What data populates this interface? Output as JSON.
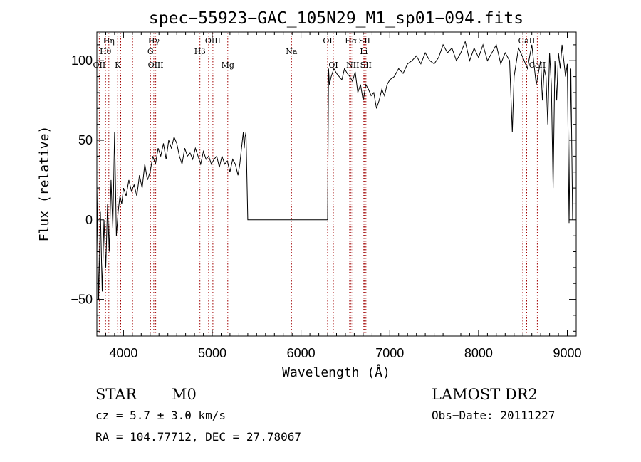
{
  "chart_data": {
    "type": "line",
    "title": "spec−55923−GAC_105N29_M1_sp01−094.fits",
    "xlabel": "Wavelength (Å)",
    "ylabel": "Flux (relative)",
    "xlim": [
      3700,
      9100
    ],
    "ylim": [
      -73,
      118
    ],
    "xticks": [
      4000,
      5000,
      6000,
      7000,
      8000,
      9000
    ],
    "xtick_labels": [
      "4000",
      "5000",
      "6000",
      "7000",
      "8000",
      "9000"
    ],
    "yticks": [
      -50,
      0,
      50,
      100
    ],
    "ytick_labels": [
      "−50",
      "0",
      "50",
      "100"
    ],
    "grid": false,
    "line_color": "#000000",
    "marker_color": "#a00000",
    "series": [
      {
        "x": [
          3700,
          3720,
          3740,
          3760,
          3780,
          3800,
          3820,
          3840,
          3860,
          3880,
          3900,
          3920,
          3940,
          3960,
          3980,
          4000,
          4030,
          4060,
          4090,
          4120,
          4150,
          4180,
          4210,
          4240,
          4270,
          4300,
          4330,
          4360,
          4390,
          4420,
          4450,
          4480,
          4510,
          4540,
          4570,
          4600,
          4630,
          4660,
          4690,
          4720,
          4750,
          4780,
          4810,
          4840,
          4870,
          4900,
          4930,
          4960,
          4990,
          5020,
          5050,
          5080,
          5110,
          5140,
          5170,
          5200,
          5230,
          5260,
          5290,
          5310,
          5330,
          5350,
          5360,
          5370,
          5380,
          5400,
          6300,
          6310,
          6320,
          6340,
          6370,
          6400,
          6430,
          6460,
          6490,
          6520,
          6550,
          6580,
          6610,
          6640,
          6670,
          6700,
          6730,
          6760,
          6790,
          6820,
          6850,
          6880,
          6910,
          6940,
          6970,
          7000,
          7050,
          7100,
          7150,
          7200,
          7250,
          7300,
          7350,
          7400,
          7450,
          7500,
          7550,
          7600,
          7650,
          7700,
          7750,
          7800,
          7850,
          7900,
          7950,
          8000,
          8050,
          8100,
          8150,
          8200,
          8250,
          8300,
          8350,
          8380,
          8400,
          8450,
          8500,
          8550,
          8600,
          8650,
          8700,
          8720,
          8740,
          8760,
          8780,
          8800,
          8820,
          8840,
          8860,
          8880,
          8900,
          8920,
          8940,
          8960,
          8980,
          9000,
          9020,
          9040,
          9060
        ],
        "y": [
          22,
          -50,
          5,
          -45,
          0,
          -30,
          10,
          -20,
          25,
          -5,
          55,
          -10,
          5,
          15,
          10,
          20,
          15,
          25,
          18,
          22,
          15,
          28,
          20,
          35,
          25,
          30,
          40,
          35,
          45,
          40,
          48,
          38,
          50,
          45,
          52,
          48,
          40,
          35,
          45,
          40,
          42,
          38,
          45,
          40,
          35,
          43,
          38,
          40,
          35,
          38,
          40,
          33,
          40,
          35,
          37,
          30,
          38,
          35,
          28,
          35,
          45,
          55,
          45,
          52,
          55,
          0,
          0,
          95,
          85,
          90,
          95,
          92,
          90,
          88,
          95,
          92,
          90,
          87,
          93,
          80,
          85,
          75,
          85,
          82,
          78,
          80,
          70,
          75,
          82,
          78,
          85,
          88,
          90,
          95,
          92,
          98,
          100,
          103,
          98,
          105,
          100,
          98,
          102,
          110,
          105,
          108,
          100,
          105,
          112,
          100,
          108,
          102,
          110,
          100,
          105,
          110,
          98,
          105,
          100,
          55,
          90,
          108,
          102,
          95,
          110,
          85,
          100,
          75,
          95,
          90,
          60,
          105,
          85,
          20,
          100,
          75,
          105,
          95,
          110,
          100,
          90,
          98,
          -2,
          95,
          0
        ]
      }
    ],
    "line_markers": [
      {
        "wavelength": 3727,
        "label": "OII",
        "row": 3
      },
      {
        "wavelength": 3798,
        "label": "Hθ",
        "row": 2
      },
      {
        "wavelength": 3835,
        "label": "Hη",
        "row": 1
      },
      {
        "wavelength": 3934,
        "label": "K",
        "row": 3
      },
      {
        "wavelength": 3969,
        "label": "",
        "row": 0
      },
      {
        "wavelength": 4102,
        "label": "",
        "row": 0
      },
      {
        "wavelength": 4304,
        "label": "G",
        "row": 2
      },
      {
        "wavelength": 4341,
        "label": "Hγ",
        "row": 1
      },
      {
        "wavelength": 4363,
        "label": "OIII",
        "row": 3
      },
      {
        "wavelength": 4861,
        "label": "Hβ",
        "row": 2
      },
      {
        "wavelength": 4959,
        "label": "",
        "row": 0
      },
      {
        "wavelength": 5007,
        "label": "OIII",
        "row": 1
      },
      {
        "wavelength": 5175,
        "label": "Mg",
        "row": 3
      },
      {
        "wavelength": 5893,
        "label": "Na",
        "row": 2
      },
      {
        "wavelength": 6300,
        "label": "OI",
        "row": 1
      },
      {
        "wavelength": 6364,
        "label": "OI",
        "row": 3
      },
      {
        "wavelength": 6548,
        "label": "",
        "row": 0
      },
      {
        "wavelength": 6563,
        "label": "Hα",
        "row": 1
      },
      {
        "wavelength": 6583,
        "label": "NII",
        "row": 3
      },
      {
        "wavelength": 6707,
        "label": "Li",
        "row": 2
      },
      {
        "wavelength": 6716,
        "label": "SII",
        "row": 1
      },
      {
        "wavelength": 6731,
        "label": "SII",
        "row": 3
      },
      {
        "wavelength": 8498,
        "label": "",
        "row": 0
      },
      {
        "wavelength": 8542,
        "label": "CaII",
        "row": 1
      },
      {
        "wavelength": 8662,
        "label": "CaII",
        "row": 3
      }
    ]
  },
  "info": {
    "object_class": "STAR",
    "subclass": "M0",
    "survey": "LAMOST DR2",
    "redshift": "cz = 5.7 ± 3.0 km/s",
    "obs_date": "Obs−Date: 20111227",
    "coords": "RA = 104.77712, DEC =  27.78067"
  }
}
